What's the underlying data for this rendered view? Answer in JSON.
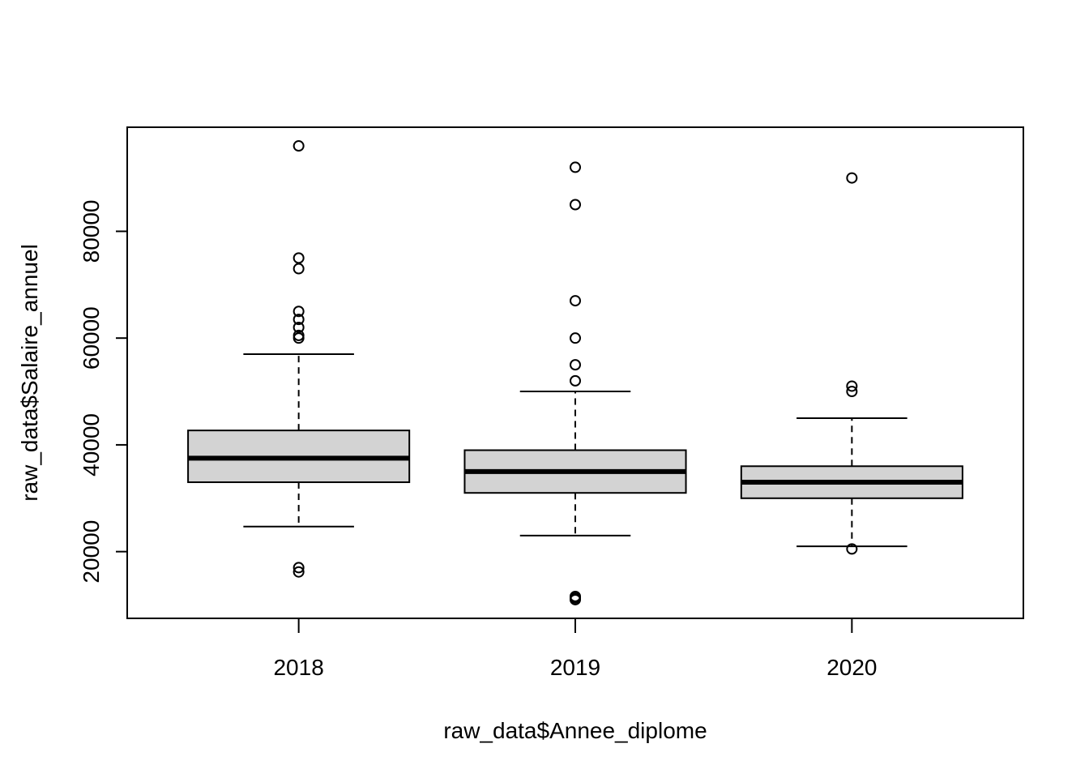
{
  "chart_data": {
    "type": "boxplot",
    "title": "",
    "xlabel": "raw_data$Annee_diplome",
    "ylabel": "raw_data$Salaire_annuel",
    "ylim": [
      7500,
      99500
    ],
    "yticks": [
      20000,
      40000,
      60000,
      80000
    ],
    "ytick_labels": [
      "20000",
      "40000",
      "60000",
      "80000"
    ],
    "grid": false,
    "legend": "none",
    "colors": {
      "box_fill": "#d3d3d3",
      "stroke": "#000000",
      "background": "#ffffff"
    },
    "categories": [
      "2018",
      "2019",
      "2020"
    ],
    "boxes": [
      {
        "category": "2018",
        "whisker_low": 24700,
        "q1": 33000,
        "median": 37500,
        "q3": 42700,
        "whisker_high": 57000,
        "outliers": [
          16200,
          17000,
          60000,
          60500,
          62000,
          63500,
          65000,
          73000,
          75000,
          96000
        ]
      },
      {
        "category": "2019",
        "whisker_low": 23000,
        "q1": 31000,
        "median": 35000,
        "q3": 39000,
        "whisker_high": 50000,
        "outliers": [
          11000,
          11300,
          11600,
          52000,
          55000,
          60000,
          67000,
          85000,
          92000
        ]
      },
      {
        "category": "2020",
        "whisker_low": 21000,
        "q1": 30000,
        "median": 33000,
        "q3": 36000,
        "whisker_high": 45000,
        "outliers": [
          20500,
          50000,
          51000,
          90000
        ]
      }
    ]
  }
}
